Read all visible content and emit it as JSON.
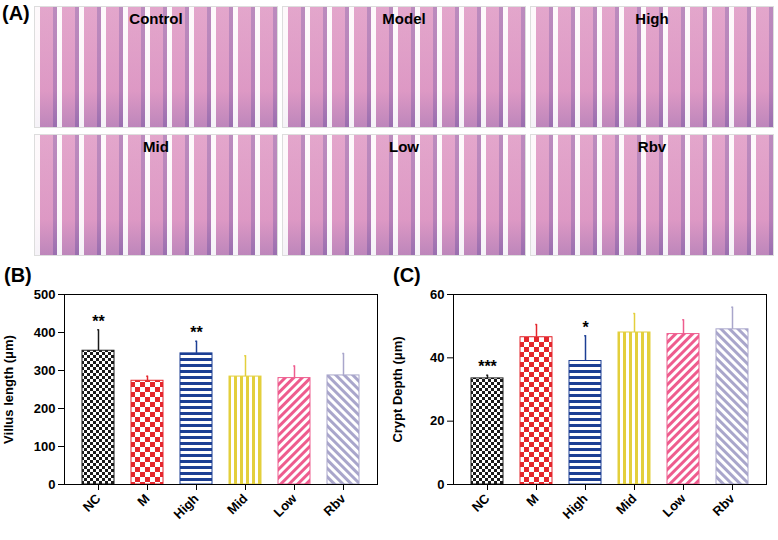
{
  "figure": {
    "panel_label": "(A)",
    "labels": [
      "Control",
      "Model",
      "High",
      "Mid",
      "Low",
      "Rbv"
    ]
  },
  "chart_data": [
    {
      "type": "bar",
      "panel_label": "(B)",
      "ylabel": "Villus length (μm)",
      "categories": [
        "NC",
        "M",
        "High",
        "Mid",
        "Low",
        "Rbv"
      ],
      "values": [
        352,
        273,
        345,
        284,
        280,
        287
      ],
      "errors": [
        55,
        12,
        32,
        55,
        32,
        58
      ],
      "annotations": [
        "**",
        null,
        "**",
        null,
        null,
        null
      ],
      "colors": [
        "#1a1a1a",
        "#e4262c",
        "#1c3f94",
        "#e3cf3c",
        "#ee5c8e",
        "#a9a6cb"
      ],
      "ylim": [
        0,
        500
      ],
      "yticks": [
        0,
        100,
        200,
        300,
        400,
        500
      ]
    },
    {
      "type": "bar",
      "panel_label": "(C)",
      "ylabel": "Crypt Depth (μm)",
      "categories": [
        "NC",
        "M",
        "High",
        "Mid",
        "Low",
        "Rbv"
      ],
      "values": [
        33.5,
        46.5,
        39,
        48,
        47.5,
        49
      ],
      "errors": [
        1,
        4,
        8,
        6,
        4.5,
        7
      ],
      "annotations": [
        "***",
        null,
        "*",
        null,
        null,
        null
      ],
      "colors": [
        "#1a1a1a",
        "#e4262c",
        "#1c3f94",
        "#e3cf3c",
        "#ee5c8e",
        "#a9a6cb"
      ],
      "ylim": [
        0,
        60
      ],
      "yticks": [
        0,
        20,
        40,
        60
      ]
    }
  ]
}
